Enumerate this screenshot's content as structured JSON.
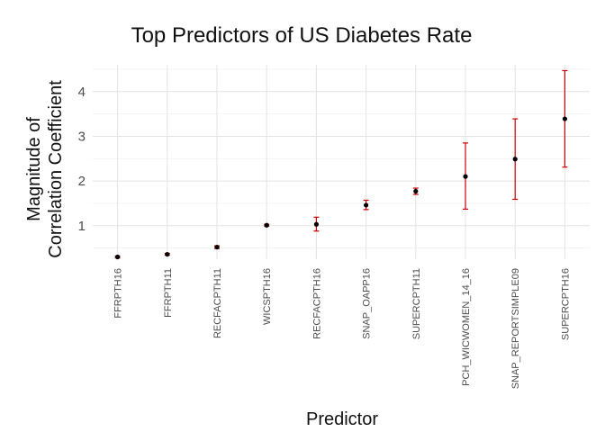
{
  "chart_data": {
    "type": "scatter",
    "title": "Top Predictors of US Diabetes Rate",
    "xlabel": "Predictor",
    "ylabel": [
      "Magnitude of",
      "Correlation Coefficient"
    ],
    "categories": [
      "FFRPTH16",
      "FFRPTH11",
      "RECFACPTH11",
      "WICSPTH16",
      "RECFACPTH16",
      "SNAP_OAPP16",
      "SUPERCPTH11",
      "PCH_WICWOMEN_14_16",
      "SNAP_REPORTSIMPLE09",
      "SUPERCPTH16"
    ],
    "values": [
      0.3,
      0.36,
      0.52,
      1.01,
      1.03,
      1.46,
      1.77,
      2.1,
      2.49,
      3.39
    ],
    "error_lower": [
      0.28,
      0.34,
      0.49,
      0.99,
      0.88,
      1.36,
      1.7,
      1.37,
      1.59,
      2.31
    ],
    "error_upper": [
      0.32,
      0.38,
      0.55,
      1.03,
      1.19,
      1.57,
      1.84,
      2.85,
      3.39,
      4.47
    ],
    "yticks": [
      1,
      2,
      3,
      4
    ],
    "ylim": [
      0.25,
      4.6
    ],
    "grid": true,
    "legend": "none",
    "colors": {
      "point": "#000000",
      "errorbar": "#cc0000",
      "grid": "#e3e3e3"
    }
  }
}
